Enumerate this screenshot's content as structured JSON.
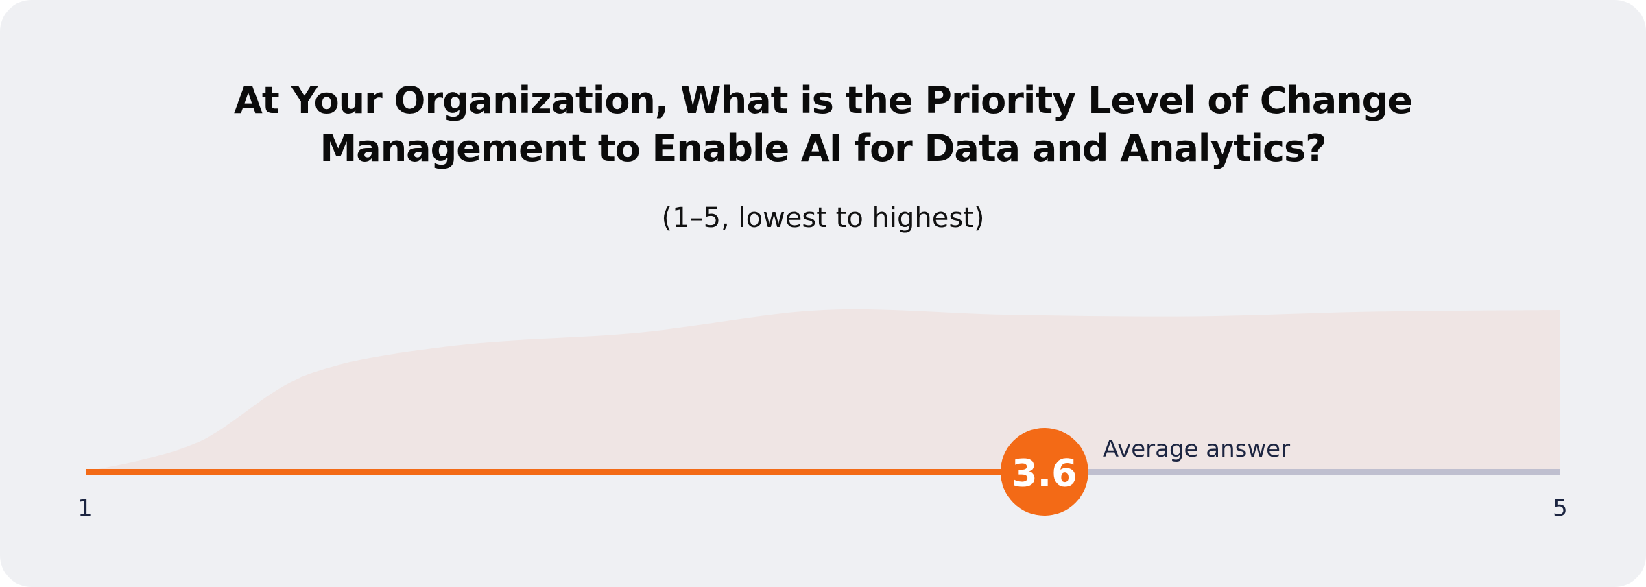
{
  "chart_data": {
    "type": "area",
    "title": "At Your Organization, What is the Priority Level of Change Management to Enable AI for Data and Analytics?",
    "subtitle": "(1–5, lowest to highest)",
    "xlim": [
      1,
      5
    ],
    "x_tick_labels": [
      "1",
      "5"
    ],
    "average": {
      "value": 3.6,
      "display": "3.6",
      "label": "Average answer"
    },
    "distribution_shape": {
      "x": [
        1,
        1.3,
        1.6,
        2,
        2.5,
        3,
        3.5,
        4,
        4.5,
        5
      ],
      "y": [
        0,
        0.18,
        0.6,
        0.78,
        0.86,
        1.0,
        0.97,
        0.96,
        0.99,
        1.0
      ]
    },
    "colors": {
      "background": "#eff0f3",
      "area": "#efe5e4",
      "bar_filled": "#f36a16",
      "bar_remaining": "#bfbfcf",
      "marker": "#f36a16",
      "text_dark": "#1c2541"
    }
  }
}
